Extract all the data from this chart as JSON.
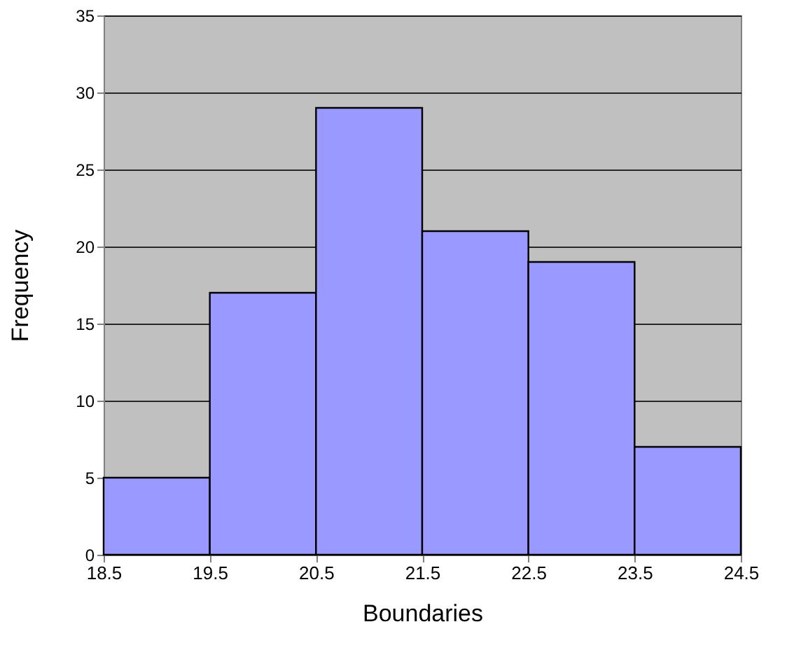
{
  "chart_data": {
    "type": "histogram",
    "xlabel": "Boundaries",
    "ylabel": "Frequency",
    "bins": [
      18.5,
      19.5,
      20.5,
      21.5,
      22.5,
      23.5,
      24.5
    ],
    "values": [
      5,
      17,
      29,
      21,
      19,
      7
    ],
    "color": "#9999ff",
    "xlim": [
      18.5,
      24.5
    ],
    "xticks": [
      18.5,
      19.5,
      20.5,
      21.5,
      22.5,
      23.5,
      24.5
    ],
    "ylim": [
      0,
      35
    ],
    "yticks": [
      0,
      5,
      10,
      15,
      20,
      25,
      30,
      35
    ],
    "grid": "y"
  }
}
